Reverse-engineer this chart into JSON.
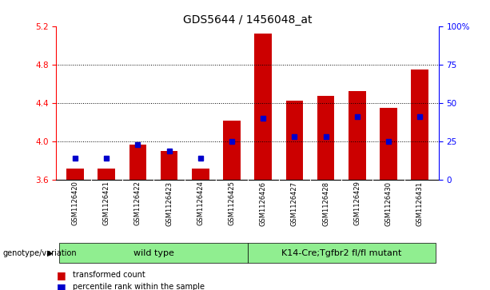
{
  "title": "GDS5644 / 1456048_at",
  "samples": [
    "GSM1126420",
    "GSM1126421",
    "GSM1126422",
    "GSM1126423",
    "GSM1126424",
    "GSM1126425",
    "GSM1126426",
    "GSM1126427",
    "GSM1126428",
    "GSM1126429",
    "GSM1126430",
    "GSM1126431"
  ],
  "transformed_count": [
    3.72,
    3.72,
    3.97,
    3.9,
    3.72,
    4.22,
    5.12,
    4.42,
    4.47,
    4.52,
    4.35,
    4.75
  ],
  "percentile_rank": [
    14,
    14,
    23,
    19,
    14,
    25,
    40,
    28,
    28,
    41,
    25,
    41
  ],
  "bar_color": "#cc0000",
  "marker_color": "#0000cc",
  "ylim_left": [
    3.6,
    5.2
  ],
  "ylim_right": [
    0,
    100
  ],
  "yticks_left": [
    3.6,
    4.0,
    4.4,
    4.8,
    5.2
  ],
  "yticks_right": [
    0,
    25,
    50,
    75,
    100
  ],
  "ytick_labels_right": [
    "0",
    "25",
    "50",
    "75",
    "100%"
  ],
  "baseline": 3.6,
  "grid_values": [
    4.0,
    4.4,
    4.8
  ],
  "wt_indices": [
    0,
    1,
    2,
    3,
    4,
    5
  ],
  "mut_indices": [
    6,
    7,
    8,
    9,
    10,
    11
  ],
  "wt_label": "wild type",
  "mut_label": "K14-Cre;Tgfbr2 fl/fl mutant",
  "group_color": "#90ee90",
  "sample_bg": "#cccccc",
  "group_label_prefix": "genotype/variation",
  "legend_items": [
    {
      "color": "#cc0000",
      "label": "transformed count"
    },
    {
      "color": "#0000cc",
      "label": "percentile rank within the sample"
    }
  ],
  "bar_width": 0.55,
  "title_fontsize": 10,
  "tick_fontsize": 7.5,
  "sample_fontsize": 6,
  "group_fontsize": 8,
  "plot_bg": "#ffffff"
}
